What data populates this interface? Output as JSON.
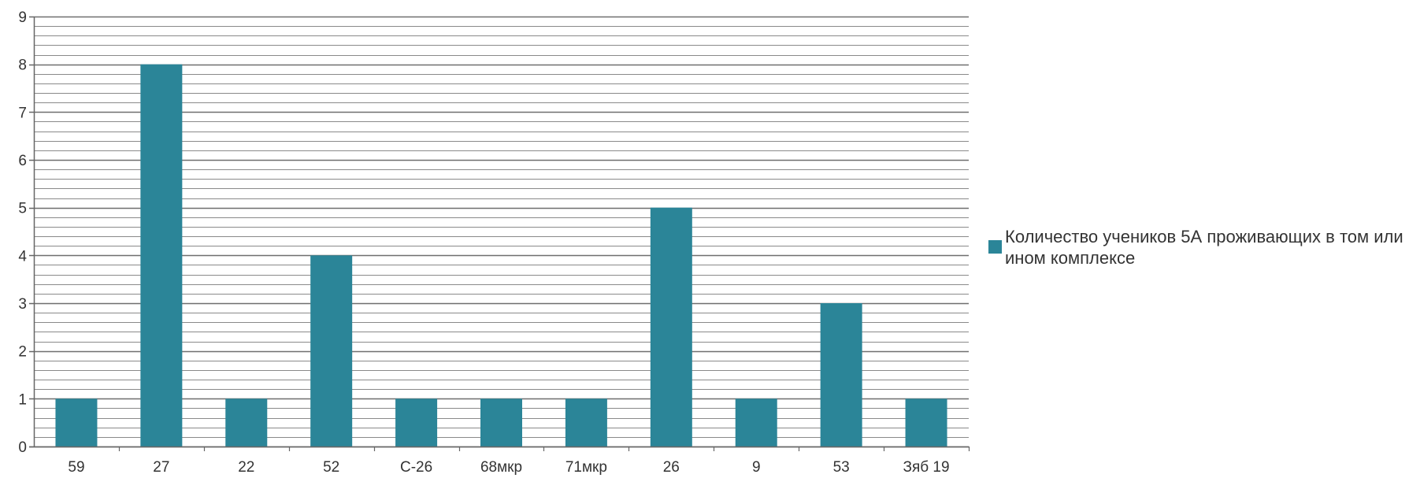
{
  "chart_data": {
    "type": "bar",
    "categories": [
      "59",
      "27",
      "22",
      "52",
      "С-26",
      "68мкр",
      "71мкр",
      "26",
      "9",
      "53",
      "Зяб 19"
    ],
    "series": [
      {
        "name": "Количество учеников 5А проживающих в том или ином комплексе",
        "values": [
          1,
          8,
          1,
          4,
          1,
          1,
          1,
          5,
          1,
          3,
          1
        ]
      }
    ],
    "y_ticks": [
      "0",
      "1",
      "2",
      "3",
      "4",
      "5",
      "6",
      "7",
      "8",
      "9"
    ],
    "ylim": [
      0,
      9
    ],
    "grid": true,
    "legend_position": "right",
    "title": "",
    "xlabel": "",
    "ylabel": ""
  },
  "colors": {
    "bar": "#2B8598",
    "grid": "#8a8a8a",
    "axis": "#666666"
  }
}
